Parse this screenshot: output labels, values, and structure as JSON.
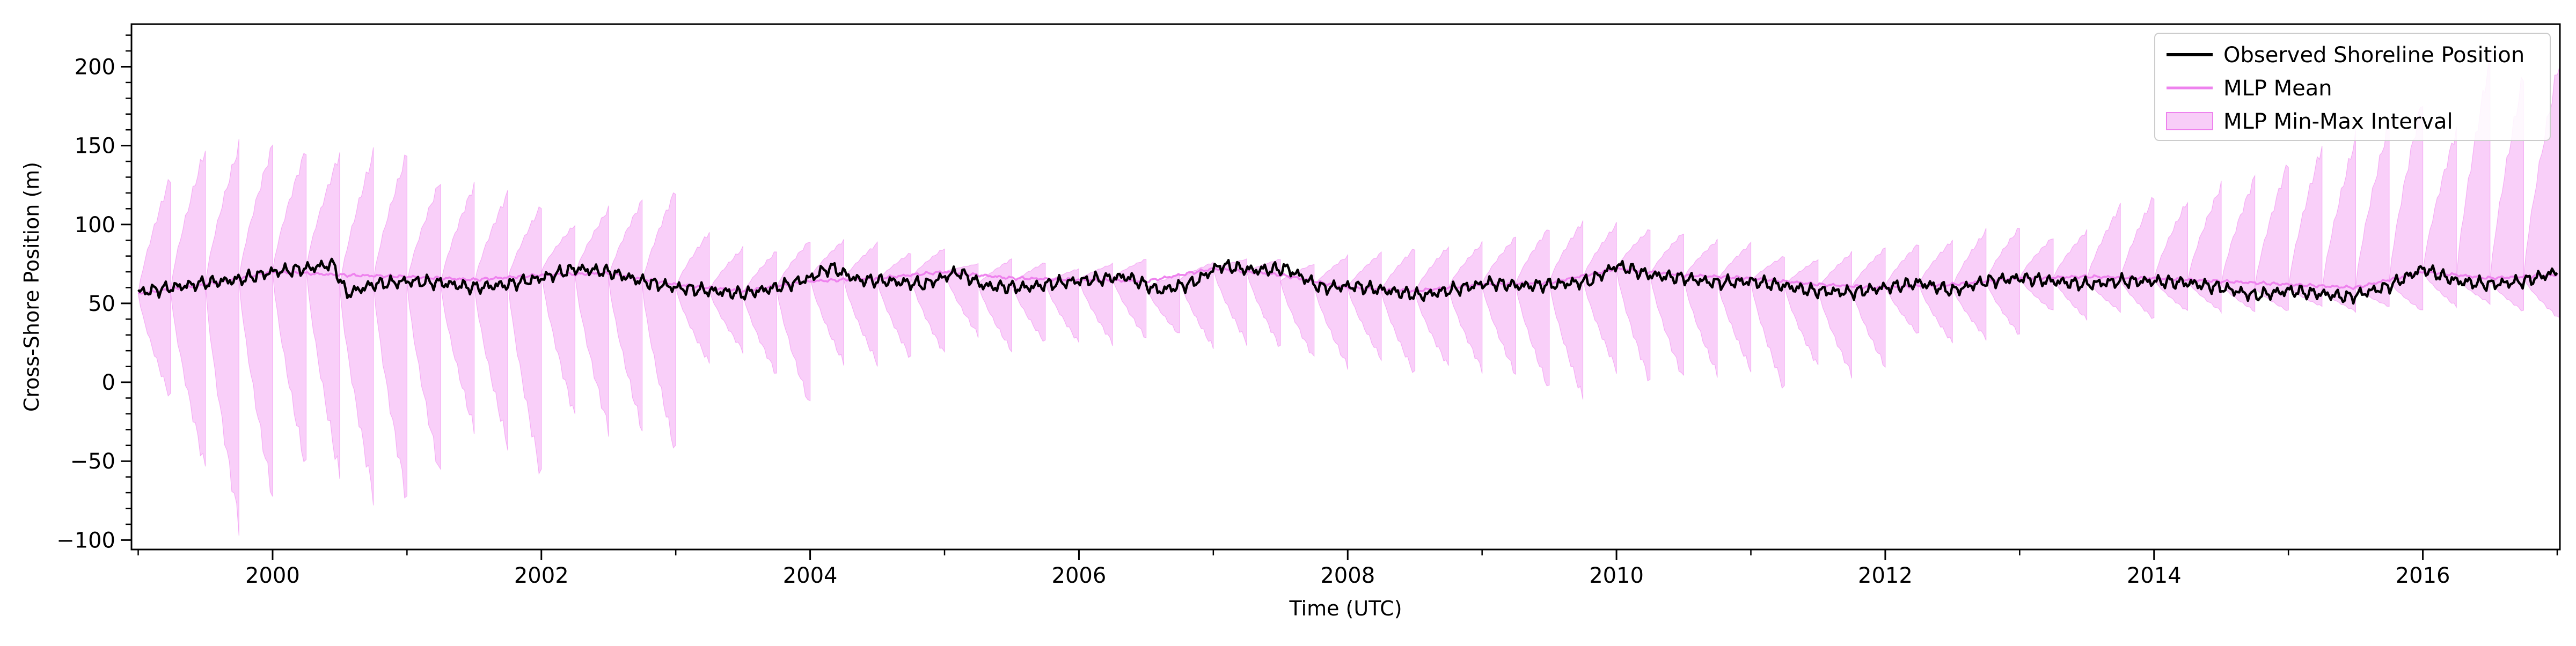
{
  "chart_data": {
    "type": "line",
    "title": "",
    "xlabel": "Time (UTC)",
    "ylabel": "Cross-Shore Position (m)",
    "xlim": [
      1998.95,
      2017.02
    ],
    "ylim": [
      -106,
      227
    ],
    "x_ticks": [
      2000,
      2002,
      2004,
      2006,
      2008,
      2010,
      2012,
      2014,
      2016
    ],
    "x_tick_labels": [
      "2000",
      "2002",
      "2004",
      "2006",
      "2008",
      "2010",
      "2012",
      "2014",
      "2016"
    ],
    "y_ticks": [
      -100,
      -50,
      0,
      50,
      100,
      150,
      200
    ],
    "y_tick_labels": [
      "−100",
      "−50",
      "0",
      "50",
      "100",
      "150",
      "200"
    ],
    "grid": false,
    "legend_position": "top-right",
    "legend": [
      {
        "label": "Observed Shoreline Position",
        "kind": "line",
        "color": "#000000"
      },
      {
        "label": "MLP Mean",
        "kind": "line",
        "color": "#ee82ee"
      },
      {
        "label": "MLP Min-Max Interval",
        "kind": "fill",
        "color": "#ee82ee"
      }
    ],
    "series": [
      {
        "name": "Observed Shoreline Position",
        "color": "#000000",
        "x": [
          1999.0,
          1999.25,
          1999.5,
          1999.75,
          2000.0,
          2000.25,
          2000.45,
          2000.55,
          2000.75,
          2001.0,
          2001.25,
          2001.5,
          2001.75,
          2002.0,
          2002.25,
          2002.5,
          2002.75,
          2003.0,
          2003.25,
          2003.5,
          2003.75,
          2004.0,
          2004.15,
          2004.35,
          2004.6,
          2004.85,
          2005.1,
          2005.3,
          2005.6,
          2005.85,
          2006.1,
          2006.35,
          2006.6,
          2006.85,
          2007.05,
          2007.3,
          2007.55,
          2007.8,
          2008.05,
          2008.3,
          2008.55,
          2008.8,
          2009.05,
          2009.3,
          2009.55,
          2009.8,
          2010.0,
          2010.25,
          2010.5,
          2010.75,
          2011.0,
          2011.25,
          2011.45,
          2011.75,
          2012.0,
          2012.25,
          2012.5,
          2012.75,
          2013.0,
          2013.25,
          2013.5,
          2013.75,
          2014.0,
          2014.25,
          2014.5,
          2014.75,
          2015.0,
          2015.25,
          2015.45,
          2015.75,
          2016.0,
          2016.25,
          2016.5,
          2016.75,
          2017.0
        ],
        "values": [
          57,
          60,
          63,
          65,
          70,
          72,
          75,
          56,
          62,
          64,
          63,
          60,
          62,
          66,
          72,
          70,
          64,
          60,
          58,
          56,
          60,
          66,
          73,
          65,
          64,
          62,
          70,
          61,
          60,
          63,
          65,
          67,
          58,
          63,
          74,
          71,
          72,
          60,
          61,
          58,
          55,
          59,
          63,
          61,
          62,
          64,
          74,
          68,
          66,
          63,
          64,
          61,
          58,
          57,
          60,
          63,
          58,
          64,
          66,
          64,
          62,
          64,
          64,
          63,
          60,
          55,
          58,
          56,
          54,
          61,
          72,
          64,
          62,
          64,
          70
        ]
      },
      {
        "name": "MLP Mean",
        "color": "#ee82ee",
        "x": [
          1999.0,
          1999.5,
          2000.0,
          2000.5,
          2001.0,
          2001.5,
          2002.0,
          2002.5,
          2003.0,
          2003.5,
          2004.0,
          2004.5,
          2005.0,
          2005.5,
          2006.0,
          2006.5,
          2007.0,
          2007.5,
          2008.0,
          2008.5,
          2009.0,
          2009.5,
          2010.0,
          2010.5,
          2011.0,
          2011.5,
          2012.0,
          2012.5,
          2013.0,
          2013.5,
          2014.0,
          2014.5,
          2015.0,
          2015.5,
          2016.0,
          2016.5,
          2017.0
        ],
        "values": [
          56,
          62,
          70,
          68,
          67,
          65,
          68,
          69,
          62,
          58,
          64,
          66,
          70,
          66,
          65,
          64,
          72,
          68,
          60,
          58,
          62,
          63,
          72,
          68,
          66,
          62,
          60,
          62,
          66,
          67,
          66,
          64,
          62,
          60,
          70,
          66,
          68
        ]
      }
    ],
    "interval": {
      "name": "MLP Min-Max Interval",
      "color": "#ee82ee",
      "cycles": [
        {
          "start": 1999.0,
          "end": 1999.24,
          "base": 56,
          "hi": 130,
          "lo": -10
        },
        {
          "start": 1999.24,
          "end": 1999.5,
          "base": 58,
          "hi": 148,
          "lo": -55
        },
        {
          "start": 1999.5,
          "end": 1999.75,
          "base": 62,
          "hi": 150,
          "lo": -90
        },
        {
          "start": 1999.75,
          "end": 2000.0,
          "base": 65,
          "hi": 150,
          "lo": -72
        },
        {
          "start": 2000.0,
          "end": 2000.25,
          "base": 70,
          "hi": 148,
          "lo": -55
        },
        {
          "start": 2000.25,
          "end": 2000.5,
          "base": 72,
          "hi": 145,
          "lo": -60
        },
        {
          "start": 2000.5,
          "end": 2000.75,
          "base": 60,
          "hi": 145,
          "lo": -72
        },
        {
          "start": 2000.75,
          "end": 2001.0,
          "base": 64,
          "hi": 145,
          "lo": -75
        },
        {
          "start": 2001.0,
          "end": 2001.25,
          "base": 63,
          "hi": 128,
          "lo": -60
        },
        {
          "start": 2001.25,
          "end": 2001.5,
          "base": 62,
          "hi": 125,
          "lo": -30
        },
        {
          "start": 2001.5,
          "end": 2001.75,
          "base": 62,
          "hi": 120,
          "lo": -40
        },
        {
          "start": 2001.75,
          "end": 2002.0,
          "base": 65,
          "hi": 112,
          "lo": -60
        },
        {
          "start": 2002.0,
          "end": 2002.25,
          "base": 70,
          "hi": 100,
          "lo": -22
        },
        {
          "start": 2002.25,
          "end": 2002.5,
          "base": 68,
          "hi": 110,
          "lo": -30
        },
        {
          "start": 2002.5,
          "end": 2002.75,
          "base": 66,
          "hi": 115,
          "lo": -30
        },
        {
          "start": 2002.75,
          "end": 2003.0,
          "base": 62,
          "hi": 122,
          "lo": -45
        },
        {
          "start": 2003.0,
          "end": 2003.25,
          "base": 60,
          "hi": 95,
          "lo": 12
        },
        {
          "start": 2003.25,
          "end": 2003.5,
          "base": 58,
          "hi": 85,
          "lo": 20
        },
        {
          "start": 2003.5,
          "end": 2003.75,
          "base": 56,
          "hi": 83,
          "lo": 5
        },
        {
          "start": 2003.75,
          "end": 2004.0,
          "base": 60,
          "hi": 90,
          "lo": -15
        },
        {
          "start": 2004.0,
          "end": 2004.25,
          "base": 66,
          "hi": 90,
          "lo": 12
        },
        {
          "start": 2004.25,
          "end": 2004.5,
          "base": 65,
          "hi": 88,
          "lo": 12
        },
        {
          "start": 2004.5,
          "end": 2004.75,
          "base": 64,
          "hi": 82,
          "lo": 15
        },
        {
          "start": 2004.75,
          "end": 2005.0,
          "base": 66,
          "hi": 85,
          "lo": 18
        },
        {
          "start": 2005.0,
          "end": 2005.25,
          "base": 70,
          "hi": 75,
          "lo": 30
        },
        {
          "start": 2005.25,
          "end": 2005.5,
          "base": 62,
          "hi": 78,
          "lo": 20
        },
        {
          "start": 2005.5,
          "end": 2005.75,
          "base": 62,
          "hi": 76,
          "lo": 25
        },
        {
          "start": 2005.75,
          "end": 2006.0,
          "base": 63,
          "hi": 72,
          "lo": 25
        },
        {
          "start": 2006.0,
          "end": 2006.25,
          "base": 65,
          "hi": 75,
          "lo": 25
        },
        {
          "start": 2006.25,
          "end": 2006.5,
          "base": 66,
          "hi": 78,
          "lo": 28
        },
        {
          "start": 2006.5,
          "end": 2006.75,
          "base": 60,
          "hi": 68,
          "lo": 30
        },
        {
          "start": 2006.75,
          "end": 2007.0,
          "base": 65,
          "hi": 76,
          "lo": 22
        },
        {
          "start": 2007.0,
          "end": 2007.25,
          "base": 72,
          "hi": 78,
          "lo": 25
        },
        {
          "start": 2007.25,
          "end": 2007.5,
          "base": 70,
          "hi": 78,
          "lo": 22
        },
        {
          "start": 2007.5,
          "end": 2007.75,
          "base": 64,
          "hi": 75,
          "lo": 15
        },
        {
          "start": 2007.75,
          "end": 2008.0,
          "base": 61,
          "hi": 80,
          "lo": 10
        },
        {
          "start": 2008.0,
          "end": 2008.25,
          "base": 60,
          "hi": 82,
          "lo": 15
        },
        {
          "start": 2008.25,
          "end": 2008.5,
          "base": 58,
          "hi": 85,
          "lo": 5
        },
        {
          "start": 2008.5,
          "end": 2008.75,
          "base": 57,
          "hi": 86,
          "lo": 10
        },
        {
          "start": 2008.75,
          "end": 2009.0,
          "base": 60,
          "hi": 88,
          "lo": 8
        },
        {
          "start": 2009.0,
          "end": 2009.25,
          "base": 62,
          "hi": 92,
          "lo": 5
        },
        {
          "start": 2009.25,
          "end": 2009.5,
          "base": 62,
          "hi": 98,
          "lo": -5
        },
        {
          "start": 2009.5,
          "end": 2009.75,
          "base": 63,
          "hi": 102,
          "lo": -10
        },
        {
          "start": 2009.75,
          "end": 2010.0,
          "base": 66,
          "hi": 100,
          "lo": 8
        },
        {
          "start": 2010.0,
          "end": 2010.25,
          "base": 72,
          "hi": 97,
          "lo": 0
        },
        {
          "start": 2010.25,
          "end": 2010.5,
          "base": 68,
          "hi": 95,
          "lo": 2
        },
        {
          "start": 2010.5,
          "end": 2010.75,
          "base": 66,
          "hi": 90,
          "lo": 5
        },
        {
          "start": 2010.75,
          "end": 2011.0,
          "base": 64,
          "hi": 88,
          "lo": 8
        },
        {
          "start": 2011.0,
          "end": 2011.25,
          "base": 64,
          "hi": 80,
          "lo": -5
        },
        {
          "start": 2011.25,
          "end": 2011.5,
          "base": 61,
          "hi": 78,
          "lo": 10
        },
        {
          "start": 2011.5,
          "end": 2011.75,
          "base": 59,
          "hi": 82,
          "lo": 5
        },
        {
          "start": 2011.75,
          "end": 2012.0,
          "base": 60,
          "hi": 85,
          "lo": 10
        },
        {
          "start": 2012.0,
          "end": 2012.25,
          "base": 61,
          "hi": 88,
          "lo": 30
        },
        {
          "start": 2012.25,
          "end": 2012.5,
          "base": 62,
          "hi": 90,
          "lo": 25
        },
        {
          "start": 2012.5,
          "end": 2012.75,
          "base": 60,
          "hi": 96,
          "lo": 28
        },
        {
          "start": 2012.75,
          "end": 2013.0,
          "base": 64,
          "hi": 98,
          "lo": 30
        },
        {
          "start": 2013.0,
          "end": 2013.25,
          "base": 66,
          "hi": 92,
          "lo": 45
        },
        {
          "start": 2013.25,
          "end": 2013.5,
          "base": 66,
          "hi": 96,
          "lo": 40
        },
        {
          "start": 2013.5,
          "end": 2013.75,
          "base": 65,
          "hi": 112,
          "lo": 45
        },
        {
          "start": 2013.75,
          "end": 2014.0,
          "base": 65,
          "hi": 118,
          "lo": 40
        },
        {
          "start": 2014.0,
          "end": 2014.25,
          "base": 65,
          "hi": 115,
          "lo": 45
        },
        {
          "start": 2014.25,
          "end": 2014.5,
          "base": 64,
          "hi": 125,
          "lo": 45
        },
        {
          "start": 2014.5,
          "end": 2014.75,
          "base": 62,
          "hi": 130,
          "lo": 45
        },
        {
          "start": 2014.75,
          "end": 2015.0,
          "base": 60,
          "hi": 140,
          "lo": 45
        },
        {
          "start": 2015.0,
          "end": 2015.25,
          "base": 60,
          "hi": 150,
          "lo": 48
        },
        {
          "start": 2015.25,
          "end": 2015.5,
          "base": 58,
          "hi": 155,
          "lo": 45
        },
        {
          "start": 2015.5,
          "end": 2015.75,
          "base": 60,
          "hi": 165,
          "lo": 48
        },
        {
          "start": 2015.75,
          "end": 2016.0,
          "base": 64,
          "hi": 180,
          "lo": 45
        },
        {
          "start": 2016.0,
          "end": 2016.25,
          "base": 70,
          "hi": 160,
          "lo": 48
        },
        {
          "start": 2016.25,
          "end": 2016.5,
          "base": 66,
          "hi": 205,
          "lo": 50
        },
        {
          "start": 2016.5,
          "end": 2016.75,
          "base": 64,
          "hi": 195,
          "lo": 45
        },
        {
          "start": 2016.75,
          "end": 2017.02,
          "base": 66,
          "hi": 205,
          "lo": 40
        }
      ]
    }
  }
}
